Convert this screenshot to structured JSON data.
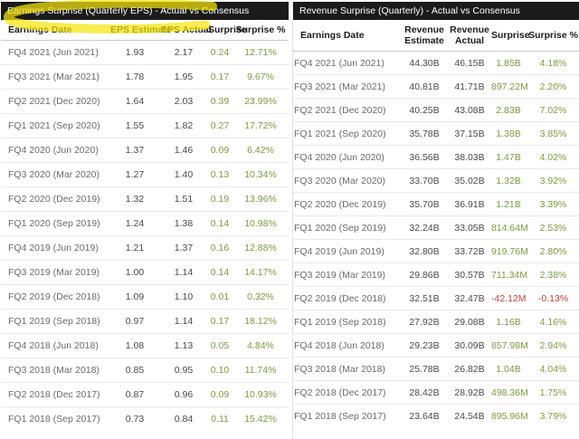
{
  "colors": {
    "positive": "#7d9b42",
    "negative": "#c2413a",
    "title_bar_bg": "#1b1b1b",
    "highlight": "#f5e40c"
  },
  "annotation": {
    "type": "yellow-highlighter-stroke",
    "target": "eps-table-title"
  },
  "eps_table": {
    "title": "Earnings Surprise (Quarterly EPS) - Actual vs Consensus",
    "headers": [
      "Earnings Date",
      "EPS Estimate",
      "EPS Actual",
      "Surprise",
      "Surprise %"
    ],
    "rows": [
      [
        "FQ4 2021 (Jun 2021)",
        "1.93",
        "2.17",
        "0.24",
        "12.71%"
      ],
      [
        "FQ3 2021 (Mar 2021)",
        "1.78",
        "1.95",
        "0.17",
        "9.67%"
      ],
      [
        "FQ2 2021 (Dec 2020)",
        "1.64",
        "2.03",
        "0.39",
        "23.99%"
      ],
      [
        "FQ1 2021 (Sep 2020)",
        "1.55",
        "1.82",
        "0.27",
        "17.72%"
      ],
      [
        "FQ4 2020 (Jun 2020)",
        "1.37",
        "1.46",
        "0.09",
        "6.42%"
      ],
      [
        "FQ3 2020 (Mar 2020)",
        "1.27",
        "1.40",
        "0.13",
        "10.34%"
      ],
      [
        "FQ2 2020 (Dec 2019)",
        "1.32",
        "1.51",
        "0.19",
        "13.96%"
      ],
      [
        "FQ1 2020 (Sep 2019)",
        "1.24",
        "1.38",
        "0.14",
        "10.98%"
      ],
      [
        "FQ4 2019 (Jun 2019)",
        "1.21",
        "1.37",
        "0.16",
        "12.88%"
      ],
      [
        "FQ3 2019 (Mar 2019)",
        "1.00",
        "1.14",
        "0.14",
        "14.17%"
      ],
      [
        "FQ2 2019 (Dec 2018)",
        "1.09",
        "1.10",
        "0.01",
        "0.32%"
      ],
      [
        "FQ1 2019 (Sep 2018)",
        "0.97",
        "1.14",
        "0.17",
        "18.12%"
      ],
      [
        "FQ4 2018 (Jun 2018)",
        "1.08",
        "1.13",
        "0.05",
        "4.84%"
      ],
      [
        "FQ3 2018 (Mar 2018)",
        "0.85",
        "0.95",
        "0.10",
        "11.74%"
      ],
      [
        "FQ2 2018 (Dec 2017)",
        "0.87",
        "0.96",
        "0.09",
        "10.93%"
      ],
      [
        "FQ1 2018 (Sep 2017)",
        "0.73",
        "0.84",
        "0.11",
        "15.42%"
      ]
    ]
  },
  "revenue_table": {
    "title": "Revenue Surprise (Quarterly) - Actual vs Consensus",
    "headers": [
      "Earnings Date",
      "Revenue Estimate",
      "Revenue Actual",
      "Surprise",
      "Surprise %"
    ],
    "rows": [
      [
        "FQ4 2021 (Jun 2021)",
        "44.30B",
        "46.15B",
        "1.85B",
        "4.18%"
      ],
      [
        "FQ3 2021 (Mar 2021)",
        "40.81B",
        "41.71B",
        "897.22M",
        "2.20%"
      ],
      [
        "FQ2 2021 (Dec 2020)",
        "40.25B",
        "43.08B",
        "2.83B",
        "7.02%"
      ],
      [
        "FQ1 2021 (Sep 2020)",
        "35.78B",
        "37.15B",
        "1.38B",
        "3.85%"
      ],
      [
        "FQ4 2020 (Jun 2020)",
        "36.56B",
        "38.03B",
        "1.47B",
        "4.02%"
      ],
      [
        "FQ3 2020 (Mar 2020)",
        "33.70B",
        "35.02B",
        "1.32B",
        "3.92%"
      ],
      [
        "FQ2 2020 (Dec 2019)",
        "35.70B",
        "36.91B",
        "1.21B",
        "3.39%"
      ],
      [
        "FQ1 2020 (Sep 2019)",
        "32.24B",
        "33.05B",
        "814.64M",
        "2.53%"
      ],
      [
        "FQ4 2019 (Jun 2019)",
        "32.80B",
        "33.72B",
        "919.76M",
        "2.80%"
      ],
      [
        "FQ3 2019 (Mar 2019)",
        "29.86B",
        "30.57B",
        "711.34M",
        "2.38%"
      ],
      [
        "FQ2 2019 (Dec 2018)",
        "32.51B",
        "32.47B",
        "-42.12M",
        "-0.13%"
      ],
      [
        "FQ1 2019 (Sep 2018)",
        "27.92B",
        "29.08B",
        "1.16B",
        "4.16%"
      ],
      [
        "FQ4 2018 (Jun 2018)",
        "29.23B",
        "30.09B",
        "857.98M",
        "2.94%"
      ],
      [
        "FQ3 2018 (Mar 2018)",
        "25.78B",
        "26.82B",
        "1.04B",
        "4.04%"
      ],
      [
        "FQ2 2018 (Dec 2017)",
        "28.42B",
        "28.92B",
        "498.36M",
        "1.75%"
      ],
      [
        "FQ1 2018 (Sep 2017)",
        "23.64B",
        "24.54B",
        "895.96M",
        "3.79%"
      ]
    ]
  }
}
